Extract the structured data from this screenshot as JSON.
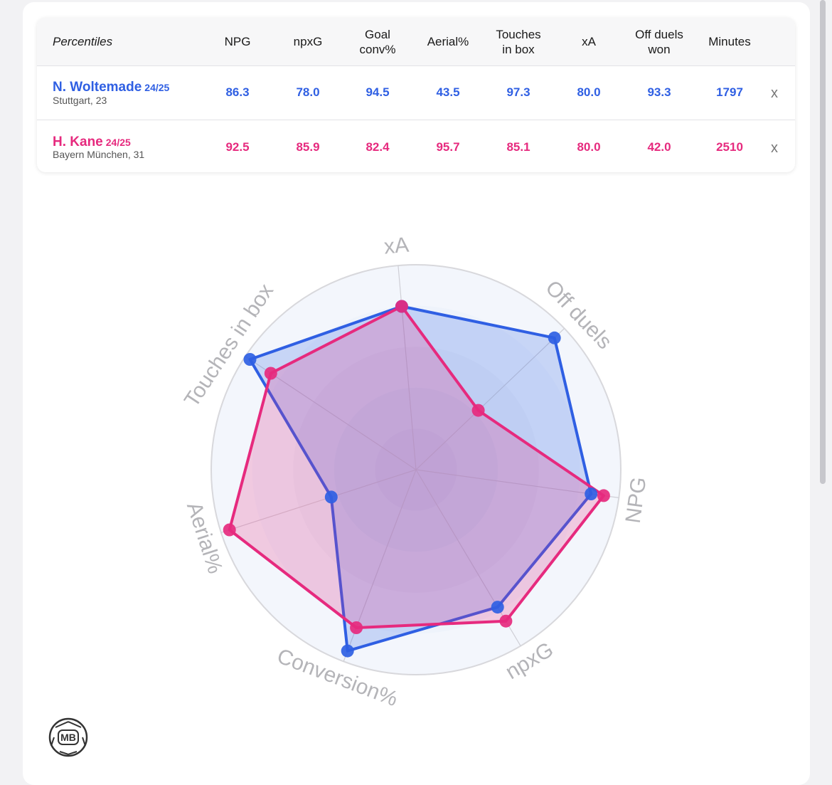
{
  "table": {
    "header": {
      "first": "Percentiles",
      "columns": [
        "NPG",
        "npxG",
        "Goal\nconv%",
        "Aerial%",
        "Touches\nin box",
        "xA",
        "Off duels\nwon",
        "Minutes"
      ]
    },
    "rows": [
      {
        "name": "N. Woltemade",
        "season": "24/25",
        "club": "Stuttgart, 23",
        "values": [
          "86.3",
          "78.0",
          "94.5",
          "43.5",
          "97.3",
          "80.0",
          "93.3",
          "1797"
        ],
        "remove_label": "x",
        "color": "#2f5fe3"
      },
      {
        "name": "H. Kane",
        "season": "24/25",
        "club": "Bayern München, 31",
        "values": [
          "92.5",
          "85.9",
          "82.4",
          "95.7",
          "85.1",
          "80.0",
          "42.0",
          "2510"
        ],
        "remove_label": "x",
        "color": "#e62a7e"
      }
    ]
  },
  "chart_data": {
    "type": "radar",
    "axes": [
      "xA",
      "Off duels",
      "NPG",
      "npxG",
      "Conversion%",
      "Aerial%",
      "Touches in box"
    ],
    "range": [
      0,
      100
    ],
    "series": [
      {
        "name": "N. Woltemade",
        "color": "#2f5fe3",
        "values": [
          80.0,
          93.3,
          86.3,
          78.0,
          94.5,
          43.5,
          97.3
        ]
      },
      {
        "name": "H. Kane",
        "color": "#e62a7e",
        "values": [
          80.0,
          42.0,
          92.5,
          85.9,
          82.4,
          95.7,
          85.1
        ]
      }
    ]
  },
  "logo": {
    "text": "MB"
  }
}
